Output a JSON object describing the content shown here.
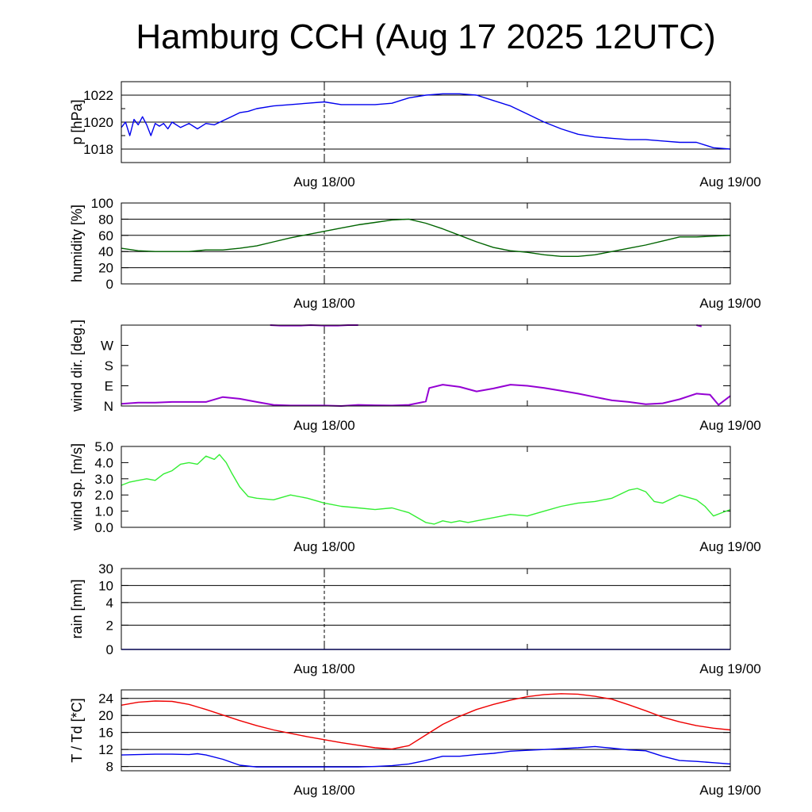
{
  "title": "Hamburg CCH (Aug 17 2025 12UTC)",
  "x_tick_labels": [
    "Aug 18/00",
    "Aug 19/00"
  ],
  "chart_data": [
    {
      "id": "pressure",
      "type": "line",
      "ylabel": "p [hPa]",
      "unit": "hPa",
      "x_unit": "hours since Aug 17 12UTC",
      "xlim": [
        0,
        36
      ],
      "ylim": [
        1017,
        1023
      ],
      "yticks": [
        {
          "value": 1018,
          "label": "1018"
        },
        {
          "value": 1020,
          "label": "1020"
        },
        {
          "value": 1022,
          "label": "1022"
        }
      ],
      "minor_yticks": [
        1017,
        1019,
        1021,
        1023
      ],
      "grid_y": [
        1018,
        1020,
        1022
      ],
      "series": [
        {
          "color": "#0000ee",
          "x": [
            0,
            0.25,
            0.5,
            0.75,
            1.0,
            1.25,
            1.5,
            1.75,
            2,
            2.25,
            2.5,
            2.75,
            3,
            3.5,
            4,
            4.5,
            5,
            5.5,
            6,
            6.5,
            7,
            7.5,
            8,
            9,
            10,
            11,
            12,
            13,
            14,
            15,
            16,
            17,
            18,
            19,
            20,
            21,
            22,
            23,
            24,
            25,
            26,
            27,
            28,
            29,
            30,
            31,
            32,
            33,
            34,
            35,
            36
          ],
          "y": [
            1019.6,
            1020.0,
            1019.0,
            1020.2,
            1019.8,
            1020.4,
            1019.8,
            1019.0,
            1019.9,
            1019.7,
            1019.9,
            1019.5,
            1020.0,
            1019.6,
            1019.9,
            1019.5,
            1019.9,
            1019.8,
            1020.1,
            1020.4,
            1020.7,
            1020.8,
            1021.0,
            1021.2,
            1021.3,
            1021.4,
            1021.5,
            1021.3,
            1021.3,
            1021.3,
            1021.4,
            1021.8,
            1022.0,
            1022.1,
            1022.1,
            1022.0,
            1021.6,
            1021.2,
            1020.6,
            1020.0,
            1019.5,
            1019.1,
            1018.9,
            1018.8,
            1018.7,
            1018.7,
            1018.6,
            1018.5,
            1018.5,
            1018.1,
            1018.0
          ]
        }
      ]
    },
    {
      "id": "humidity",
      "type": "line",
      "ylabel": "humidity [%]",
      "unit": "%",
      "x_unit": "hours since Aug 17 12UTC",
      "xlim": [
        0,
        36
      ],
      "ylim": [
        0,
        100
      ],
      "yticks": [
        {
          "value": 0,
          "label": "0"
        },
        {
          "value": 20,
          "label": "20"
        },
        {
          "value": 40,
          "label": "40"
        },
        {
          "value": 60,
          "label": "60"
        },
        {
          "value": 80,
          "label": "80"
        },
        {
          "value": 100,
          "label": "100"
        }
      ],
      "minor_yticks": [],
      "grid_y": [
        20,
        40,
        60,
        80
      ],
      "series": [
        {
          "color": "#006400",
          "x": [
            0,
            1,
            2,
            3,
            4,
            5,
            6,
            7,
            8,
            9,
            10,
            11,
            12,
            13,
            14,
            15,
            16,
            17,
            18,
            19,
            20,
            21,
            22,
            23,
            24,
            25,
            26,
            27,
            28,
            29,
            30,
            31,
            32,
            33,
            34,
            35,
            36
          ],
          "y": [
            44,
            41,
            40,
            40,
            40,
            42,
            42,
            44,
            47,
            52,
            57,
            61,
            65,
            69,
            73,
            76,
            79,
            80,
            75,
            68,
            60,
            52,
            45,
            41,
            39,
            36,
            34,
            34,
            36,
            40,
            44,
            48,
            53,
            58,
            58,
            59,
            60
          ]
        }
      ]
    },
    {
      "id": "wind_direction",
      "type": "scatter",
      "ylabel": "wind dir. [deg.]",
      "unit": "deg",
      "x_unit": "hours since Aug 17 12UTC",
      "xlim": [
        0,
        36
      ],
      "ylim": [
        0,
        360
      ],
      "yticks": [
        {
          "value": 0,
          "label": "N"
        },
        {
          "value": 90,
          "label": "E"
        },
        {
          "value": 180,
          "label": "S"
        },
        {
          "value": 270,
          "label": "W"
        }
      ],
      "minor_yticks": [],
      "grid_y": [],
      "series": [
        {
          "color": "#9400d3",
          "x": [
            0,
            1,
            2,
            3,
            4,
            5,
            6,
            7,
            8,
            9,
            10,
            11,
            12,
            13,
            14,
            15,
            16,
            17,
            18,
            18.2,
            19,
            20,
            21,
            22,
            23,
            24,
            25,
            26,
            27,
            28,
            29,
            30,
            31,
            32,
            33,
            34,
            34.8,
            35.3,
            36
          ],
          "y": [
            10,
            15,
            15,
            18,
            18,
            18,
            40,
            32,
            18,
            5,
            2,
            2,
            2,
            0,
            5,
            3,
            2,
            5,
            20,
            80,
            95,
            85,
            65,
            78,
            95,
            90,
            80,
            68,
            55,
            40,
            25,
            18,
            8,
            12,
            30,
            55,
            50,
            5,
            45
          ]
        },
        {
          "color": "#9400d3",
          "x": [
            8.8,
            9.4,
            10,
            10.6,
            11.2,
            12,
            12.8,
            13.4,
            14
          ],
          "y": [
            360,
            358,
            358,
            358,
            360,
            358,
            358,
            360,
            360
          ]
        },
        {
          "color": "#9400d3",
          "x": [
            34,
            34.3
          ],
          "y": [
            360,
            354
          ]
        }
      ]
    },
    {
      "id": "wind_speed",
      "type": "line",
      "ylabel": "wind sp. [m/s]",
      "unit": "m/s",
      "x_unit": "hours since Aug 17 12UTC",
      "xlim": [
        0,
        36
      ],
      "ylim": [
        0,
        5
      ],
      "yticks": [
        {
          "value": 0,
          "label": "0.0"
        },
        {
          "value": 1,
          "label": "1.0"
        },
        {
          "value": 2,
          "label": "2.0"
        },
        {
          "value": 3,
          "label": "3.0"
        },
        {
          "value": 4,
          "label": "4.0"
        },
        {
          "value": 5,
          "label": "5.0"
        }
      ],
      "minor_yticks": [],
      "grid_y": [],
      "series": [
        {
          "color": "#33ee33",
          "x": [
            0,
            0.5,
            1,
            1.5,
            2,
            2.5,
            3,
            3.5,
            4,
            4.5,
            5,
            5.5,
            5.8,
            6.2,
            6.5,
            7,
            7.5,
            8,
            9,
            10,
            11,
            12,
            13,
            14,
            15,
            16,
            17,
            18,
            18.5,
            19,
            19.5,
            20,
            20.5,
            21,
            22,
            23,
            24,
            25,
            26,
            27,
            28,
            29,
            30,
            30.5,
            31,
            31.5,
            32,
            33,
            34,
            34.5,
            35,
            35.5,
            36
          ],
          "y": [
            2.6,
            2.8,
            2.9,
            3.0,
            2.9,
            3.3,
            3.5,
            3.9,
            4.0,
            3.9,
            4.4,
            4.2,
            4.5,
            4.0,
            3.4,
            2.5,
            1.9,
            1.8,
            1.7,
            2.0,
            1.8,
            1.5,
            1.3,
            1.2,
            1.1,
            1.2,
            0.9,
            0.3,
            0.2,
            0.4,
            0.3,
            0.4,
            0.3,
            0.4,
            0.6,
            0.8,
            0.7,
            1.0,
            1.3,
            1.5,
            1.6,
            1.8,
            2.3,
            2.4,
            2.2,
            1.6,
            1.5,
            2.0,
            1.7,
            1.3,
            0.7,
            0.9,
            1.1
          ]
        }
      ]
    },
    {
      "id": "rain",
      "type": "line",
      "ylabel": "rain [mm]",
      "unit": "mm",
      "x_unit": "hours since Aug 17 12UTC",
      "xlim": [
        0,
        36
      ],
      "ylim": [
        0,
        30
      ],
      "yticks": [
        {
          "value": 0,
          "label": "0"
        },
        {
          "value": 2,
          "label": "2"
        },
        {
          "value": 4,
          "label": "4"
        },
        {
          "value": 10,
          "label": "10"
        },
        {
          "value": 30,
          "label": "30"
        }
      ],
      "minor_yticks": [],
      "grid_y": [
        2,
        4,
        10,
        30
      ],
      "series": [
        {
          "color": "#0000ee",
          "x": [
            0,
            36
          ],
          "y": [
            0,
            0
          ]
        }
      ]
    },
    {
      "id": "temperature",
      "type": "line",
      "ylabel": "T / Td [*C]",
      "unit": "°C",
      "x_unit": "hours since Aug 17 12UTC",
      "xlim": [
        0,
        36
      ],
      "ylim": [
        7,
        26
      ],
      "yticks": [
        {
          "value": 8,
          "label": "8"
        },
        {
          "value": 12,
          "label": "12"
        },
        {
          "value": 16,
          "label": "16"
        },
        {
          "value": 20,
          "label": "20"
        },
        {
          "value": 24,
          "label": "24"
        }
      ],
      "minor_yticks": [],
      "grid_y": [
        8,
        12,
        16,
        20,
        24
      ],
      "series": [
        {
          "color": "#ee0000",
          "x": [
            0,
            1,
            2,
            3,
            4,
            5,
            6,
            7,
            8,
            9,
            10,
            11,
            12,
            13,
            14,
            15,
            16,
            17,
            18,
            19,
            20,
            21,
            22,
            23,
            24,
            25,
            26,
            27,
            28,
            29,
            30,
            31,
            32,
            33,
            34,
            35,
            36
          ],
          "y": [
            22.4,
            23.1,
            23.4,
            23.3,
            22.6,
            21.4,
            20.1,
            18.8,
            17.6,
            16.6,
            15.8,
            15.0,
            14.3,
            13.6,
            13.0,
            12.4,
            12.1,
            12.9,
            15.4,
            17.9,
            19.8,
            21.4,
            22.6,
            23.6,
            24.4,
            24.9,
            25.1,
            25.0,
            24.5,
            23.8,
            22.5,
            21.1,
            19.6,
            18.5,
            17.6,
            17.0,
            16.6
          ]
        },
        {
          "color": "#0000ee",
          "x": [
            0,
            1,
            2,
            3,
            4,
            4.5,
            5,
            6,
            7,
            8,
            9,
            10,
            11,
            12,
            13,
            14,
            15,
            16,
            17,
            18,
            19,
            20,
            21,
            22,
            23,
            24,
            25,
            26,
            27,
            28,
            29,
            30,
            31,
            32,
            33,
            34,
            35,
            36
          ],
          "y": [
            10.7,
            10.8,
            10.9,
            10.9,
            10.8,
            11.0,
            10.7,
            9.7,
            8.3,
            7.9,
            7.9,
            7.9,
            7.9,
            7.9,
            7.9,
            7.9,
            8.0,
            8.2,
            8.6,
            9.4,
            10.4,
            10.4,
            10.8,
            11.1,
            11.6,
            11.8,
            12.0,
            12.2,
            12.4,
            12.7,
            12.3,
            11.9,
            11.7,
            10.4,
            9.4,
            9.2,
            8.9,
            8.6
          ]
        }
      ]
    }
  ]
}
